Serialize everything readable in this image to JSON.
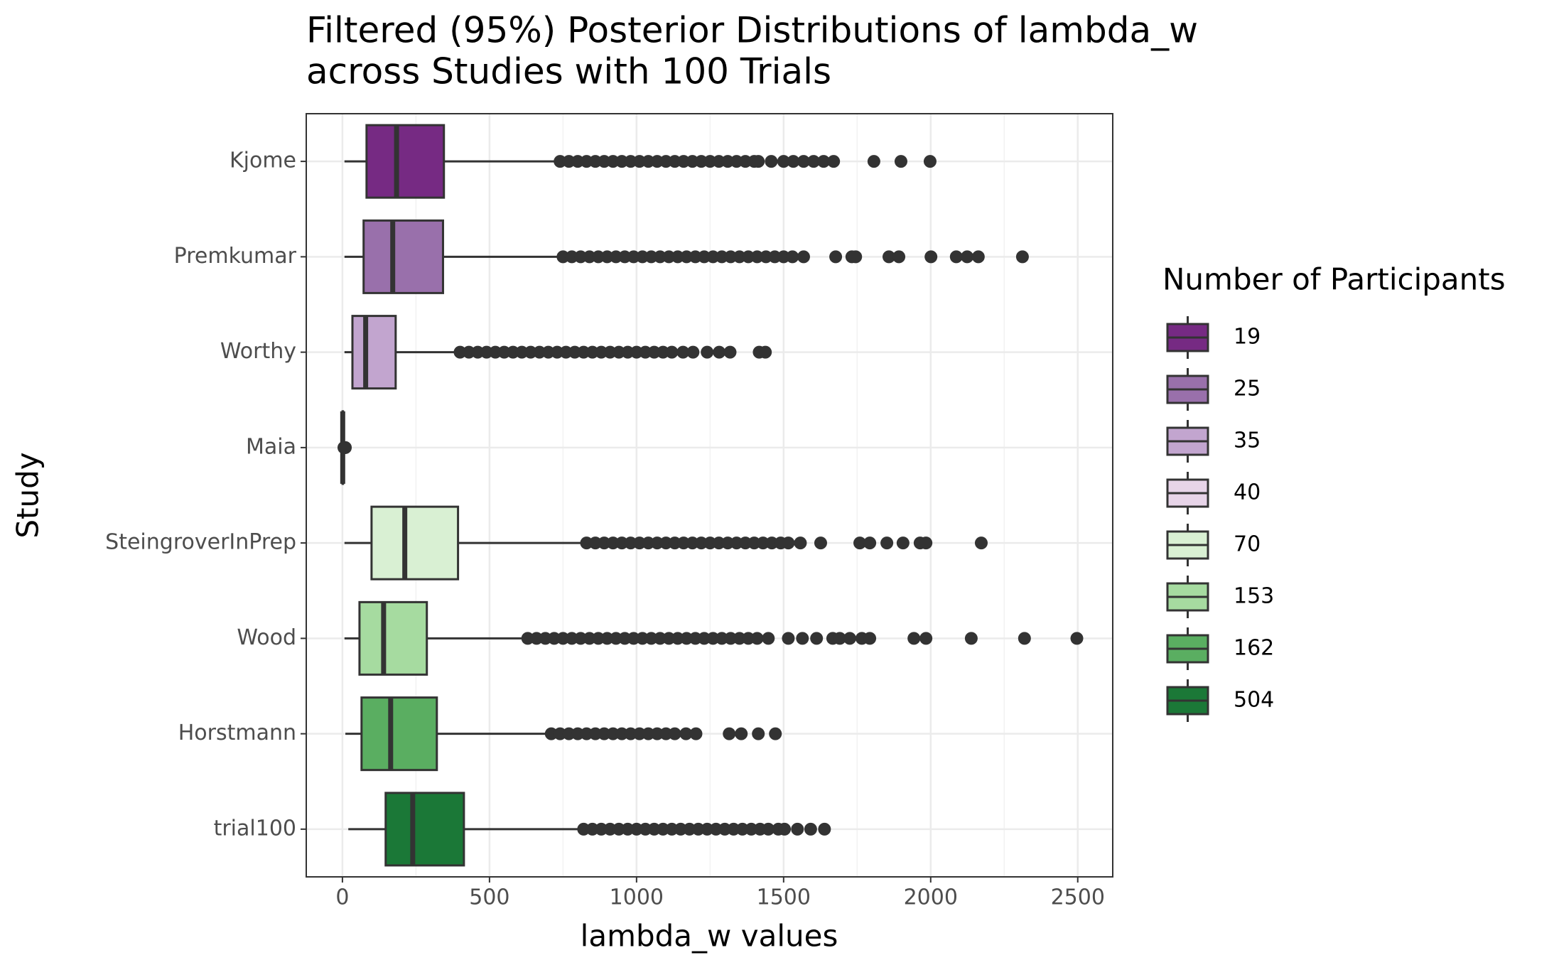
{
  "chart_data": {
    "type": "boxplot",
    "title": "Filtered (95%) Posterior Distributions of lambda_w",
    "subtitle": "across Studies with 100 Trials",
    "x_label": "lambda_w values",
    "y_label": "Study",
    "legend_title": "Number of Participants",
    "legend_position": "right",
    "xlim": [
      -123,
      2619
    ],
    "xticks": [
      0,
      500,
      1000,
      1500,
      2000,
      2500
    ],
    "xminor": [
      250,
      750,
      1250,
      1750,
      2250
    ],
    "grid": true,
    "series": [
      {
        "name": "Kjome",
        "participants": "19",
        "color": "#762a83",
        "whisker_low": 7,
        "q1": 82,
        "median": 184,
        "q3": 345,
        "whisker_high": 724,
        "outliers": [
          740,
          770,
          800,
          830,
          860,
          890,
          920,
          950,
          980,
          1010,
          1040,
          1070,
          1100,
          1130,
          1160,
          1190,
          1220,
          1250,
          1280,
          1310,
          1340,
          1370,
          1400,
          1414,
          1458,
          1500,
          1533,
          1568,
          1602,
          1636,
          1670,
          1807,
          1899,
          1998
        ]
      },
      {
        "name": "Premkumar",
        "participants": "25",
        "color": "#9970ab",
        "whisker_low": 7,
        "q1": 72,
        "median": 171,
        "q3": 342,
        "whisker_high": 731,
        "outliers": [
          750,
          780,
          810,
          840,
          870,
          900,
          930,
          960,
          990,
          1020,
          1050,
          1080,
          1110,
          1140,
          1170,
          1200,
          1230,
          1260,
          1290,
          1320,
          1350,
          1380,
          1410,
          1440,
          1470,
          1500,
          1530,
          1568,
          1677,
          1732,
          1745,
          1858,
          1892,
          2001,
          2087,
          2124,
          2162,
          2312
        ]
      },
      {
        "name": "Worthy",
        "participants": "35",
        "color": "#c2a5cf",
        "whisker_low": 7,
        "q1": 34,
        "median": 79,
        "q3": 181,
        "whisker_high": 389,
        "outliers": [
          400,
          430,
          460,
          490,
          520,
          550,
          580,
          610,
          640,
          670,
          700,
          730,
          760,
          790,
          820,
          850,
          880,
          910,
          940,
          970,
          1000,
          1030,
          1060,
          1090,
          1120,
          1158,
          1192,
          1240,
          1281,
          1318,
          1417,
          1438
        ]
      },
      {
        "name": "Maia",
        "participants": "40",
        "color": "#e7d4e8",
        "whisker_low": 0,
        "q1": 0.5,
        "median": 1,
        "q3": 2,
        "whisker_high": 4,
        "outliers": [
          5,
          6,
          8,
          10
        ]
      },
      {
        "name": "SteingroverInPrep",
        "participants": "70",
        "color": "#d9f0d3",
        "whisker_low": 7,
        "q1": 99,
        "median": 212,
        "q3": 393,
        "whisker_high": 816,
        "outliers": [
          830,
          860,
          890,
          920,
          950,
          980,
          1010,
          1040,
          1070,
          1100,
          1130,
          1160,
          1190,
          1220,
          1250,
          1280,
          1310,
          1340,
          1370,
          1400,
          1430,
          1460,
          1490,
          1516,
          1557,
          1626,
          1759,
          1793,
          1851,
          1906,
          1964,
          1984,
          2172
        ]
      },
      {
        "name": "Wood",
        "participants": "153",
        "color": "#a6dba0",
        "whisker_low": 7,
        "q1": 58,
        "median": 140,
        "q3": 287,
        "whisker_high": 618,
        "outliers": [
          630,
          660,
          690,
          720,
          750,
          780,
          810,
          840,
          870,
          900,
          930,
          960,
          990,
          1020,
          1050,
          1080,
          1110,
          1140,
          1170,
          1200,
          1230,
          1260,
          1290,
          1320,
          1350,
          1380,
          1410,
          1448,
          1516,
          1564,
          1612,
          1667,
          1691,
          1725,
          1766,
          1793,
          1943,
          1984,
          2138,
          2319,
          2497
        ]
      },
      {
        "name": "Horstmann",
        "participants": "162",
        "color": "#5aae61",
        "whisker_low": 10,
        "q1": 65,
        "median": 164,
        "q3": 321,
        "whisker_high": 697,
        "outliers": [
          710,
          740,
          770,
          800,
          830,
          860,
          890,
          920,
          950,
          980,
          1010,
          1040,
          1070,
          1100,
          1130,
          1168,
          1202,
          1315,
          1356,
          1414,
          1472
        ]
      },
      {
        "name": "trial100",
        "participants": "504",
        "color": "#1b7837",
        "whisker_low": 20,
        "q1": 147,
        "median": 239,
        "q3": 413,
        "whisker_high": 803,
        "outliers": [
          820,
          850,
          880,
          910,
          940,
          970,
          1000,
          1030,
          1060,
          1090,
          1120,
          1150,
          1180,
          1210,
          1240,
          1270,
          1300,
          1330,
          1360,
          1390,
          1420,
          1448,
          1482,
          1503,
          1547,
          1592,
          1639
        ]
      }
    ]
  }
}
